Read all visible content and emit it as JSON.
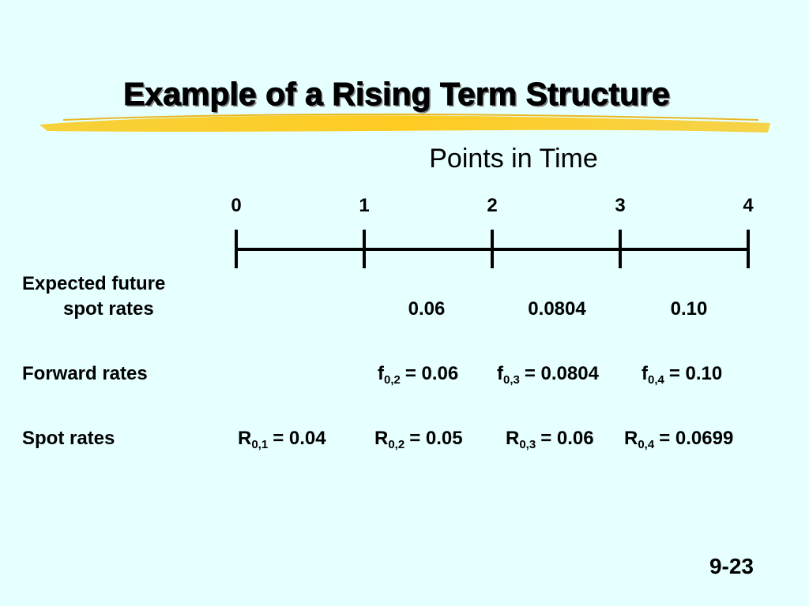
{
  "title": "Example of a Rising Term Structure",
  "timeline": {
    "title": "Points in Time",
    "points": [
      "0",
      "1",
      "2",
      "3",
      "4"
    ]
  },
  "rows": [
    {
      "label": [
        "Expected future",
        "spot rates"
      ],
      "values": [
        "0.06",
        "0.0804",
        "0.10"
      ]
    },
    {
      "label": [
        "Forward rates"
      ],
      "items": [
        {
          "symbol": "f",
          "sub": "0,2",
          "rest": "= 0.06"
        },
        {
          "symbol": "f",
          "sub": "0,3",
          "rest": "= 0.0804"
        },
        {
          "symbol": "f",
          "sub": "0,4",
          "rest": "= 0.10"
        }
      ]
    },
    {
      "label": [
        "Spot rates"
      ],
      "items": [
        {
          "symbol": "R",
          "sub": "0,1",
          "rest": "= 0.04"
        },
        {
          "symbol": "R",
          "sub": "0,2",
          "rest": "= 0.05"
        },
        {
          "symbol": "R",
          "sub": "0,3",
          "rest": "= 0.06"
        },
        {
          "symbol": "R",
          "sub": "0,4",
          "rest": "= 0.0699"
        }
      ]
    }
  ],
  "page_number": "9-23"
}
